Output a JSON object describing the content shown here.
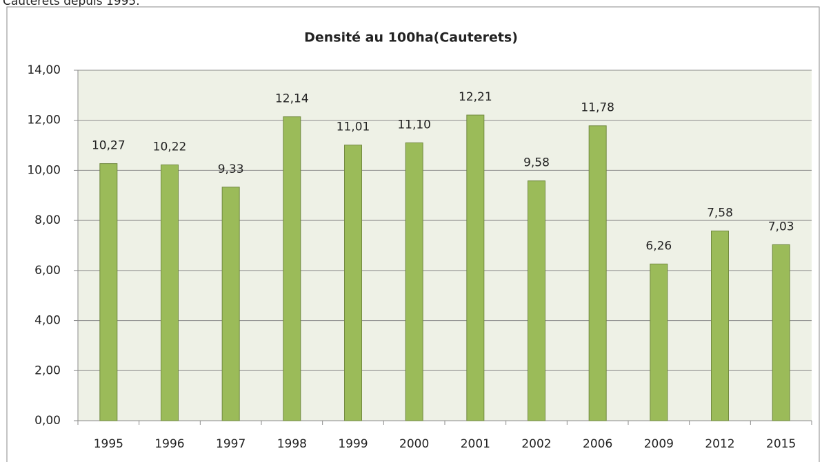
{
  "caption": "Cauterets depuis 1995.",
  "chart_data": {
    "type": "bar",
    "title": "Densité au 100ha(Cauterets)",
    "categories": [
      "1995",
      "1996",
      "1997",
      "1998",
      "1999",
      "2000",
      "2001",
      "2002",
      "2006",
      "2009",
      "2012",
      "2015"
    ],
    "values": [
      10.27,
      10.22,
      9.33,
      12.14,
      11.01,
      11.1,
      12.21,
      9.58,
      11.78,
      6.26,
      7.58,
      7.03
    ],
    "value_labels": [
      "10,27",
      "10,22",
      "9,33",
      "12,14",
      "11,01",
      "11,10",
      "12,21",
      "9,58",
      "11,78",
      "6,26",
      "7,58",
      "7,03"
    ],
    "color": "#9bbb59",
    "ylim": [
      0,
      14
    ],
    "yticks": [
      {
        "value": 0,
        "label": "0,00"
      },
      {
        "value": 2,
        "label": "2,00"
      },
      {
        "value": 4,
        "label": "4,00"
      },
      {
        "value": 6,
        "label": "6,00"
      },
      {
        "value": 8,
        "label": "8,00"
      },
      {
        "value": 10,
        "label": "10,00"
      },
      {
        "value": 12,
        "label": "12,00"
      },
      {
        "value": 14,
        "label": "14,00"
      }
    ],
    "grid": true
  }
}
